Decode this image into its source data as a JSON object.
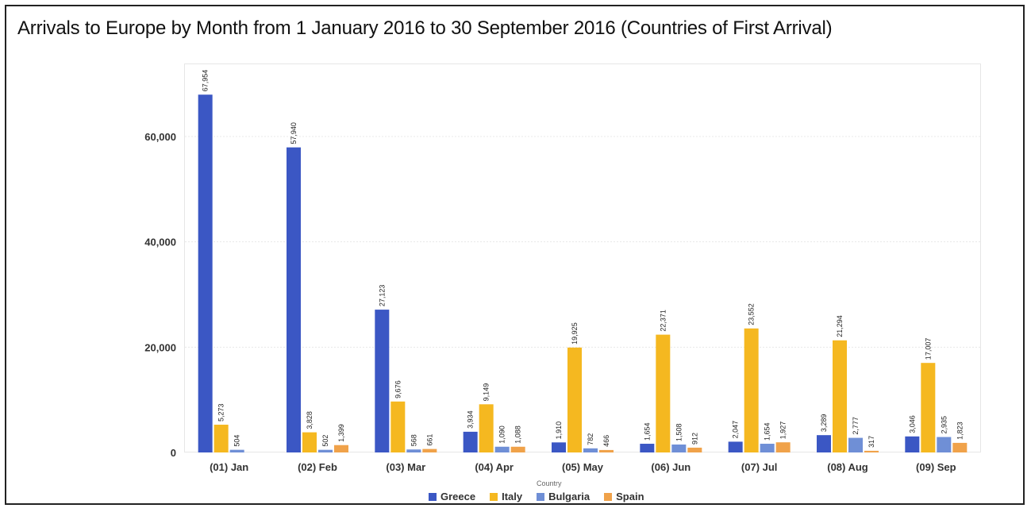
{
  "title": "Arrivals to Europe by Month from 1 January 2016 to 30 September 2016 (Countries of First Arrival)",
  "chart_data": {
    "type": "bar",
    "title": "Arrivals to Europe by Month from 1 January 2016 to 30 September 2016 (Countries of First Arrival)",
    "categories": [
      "(01) Jan",
      "(02) Feb",
      "(03) Mar",
      "(04) Apr",
      "(05) May",
      "(06) Jun",
      "(07) Jul",
      "(08) Aug",
      "(09) Sep"
    ],
    "legend_title": "Country",
    "legend_position": "bottom",
    "ylim": [
      0,
      70000
    ],
    "yticks": [
      0,
      20000,
      40000,
      60000
    ],
    "ytick_labels": [
      "0",
      "20,000",
      "40,000",
      "60,000"
    ],
    "grid": true,
    "series": [
      {
        "name": "Greece",
        "color": "#3b57c4",
        "values": [
          67954,
          57940,
          27123,
          3934,
          1910,
          1654,
          2047,
          3289,
          3046
        ],
        "labels": [
          "67,954",
          "57,940",
          "27,123",
          "3,934",
          "1,910",
          "1,654",
          "2,047",
          "3,289",
          "3,046"
        ]
      },
      {
        "name": "Italy",
        "color": "#f5b820",
        "values": [
          5273,
          3828,
          9676,
          9149,
          19925,
          22371,
          23552,
          21294,
          17007
        ],
        "labels": [
          "5,273",
          "3,828",
          "9,676",
          "9,149",
          "19,925",
          "22,371",
          "23,552",
          "21,294",
          "17,007"
        ]
      },
      {
        "name": "Bulgaria",
        "color": "#6f8fd6",
        "values": [
          504,
          502,
          568,
          1090,
          782,
          1508,
          1654,
          2777,
          2935
        ],
        "labels": [
          "504",
          "502",
          "568",
          "1,090",
          "782",
          "1,508",
          "1,654",
          "2,777",
          "2,935"
        ]
      },
      {
        "name": "Spain",
        "color": "#f0a24a",
        "values": [
          0,
          1399,
          661,
          1088,
          466,
          912,
          1927,
          317,
          1823
        ],
        "labels": [
          "",
          "1,399",
          "661",
          "1,088",
          "466",
          "912",
          "1,927",
          "317",
          "1,823"
        ]
      }
    ]
  }
}
